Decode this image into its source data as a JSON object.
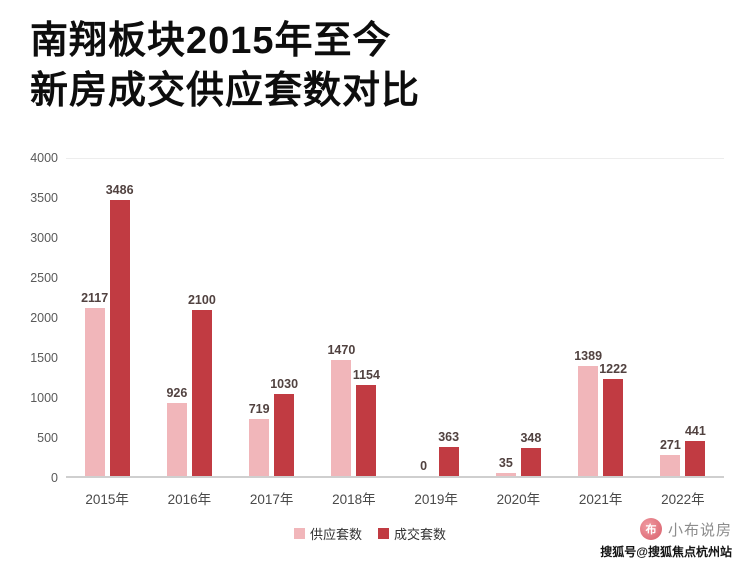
{
  "title": {
    "line1": "南翔板块2015年至今",
    "line2": "新房成交供应套数对比"
  },
  "chart_data": {
    "type": "bar",
    "title": "南翔板块2015年至今新房成交供应套数对比",
    "categories": [
      "2015年",
      "2016年",
      "2017年",
      "2018年",
      "2019年",
      "2020年",
      "2021年",
      "2022年"
    ],
    "series": [
      {
        "name": "供应套数",
        "color": "#f1b6ba",
        "values": [
          2117,
          926,
          719,
          1470,
          0,
          35,
          1389,
          271
        ]
      },
      {
        "name": "成交套数",
        "color": "#c13b42",
        "values": [
          3486,
          2100,
          1030,
          1154,
          363,
          348,
          1222,
          441
        ]
      }
    ],
    "ylim": [
      0,
      4000
    ],
    "yticks": [
      0,
      500,
      1000,
      1500,
      2000,
      2500,
      3000,
      3500,
      4000
    ],
    "grid": false,
    "legend_position": "bottom",
    "value_labels": true,
    "xlabel": "",
    "ylabel": ""
  },
  "watermark": {
    "brand": "小布说房",
    "credit": "搜狐号@搜狐焦点杭州站",
    "logo_icon": "xiaobu-logo-icon",
    "logo_glyph": "布"
  },
  "colors": {
    "supply_series": "#f1b6ba",
    "deal_series": "#c13b42",
    "title_text": "#0d0d0d",
    "axis_text": "#595959",
    "value_label_text": "#514240"
  }
}
